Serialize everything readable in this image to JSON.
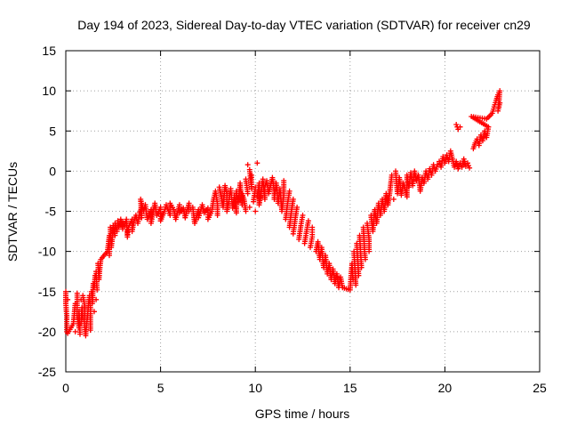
{
  "chart_data": {
    "type": "scatter",
    "title": "Day 194 of 2023, Sidereal Day-to-day VTEC variation (SDTVAR) for receiver cn29",
    "xlabel": "GPS time / hours",
    "ylabel": "SDTVAR / TECUs",
    "xlim": [
      0,
      25
    ],
    "ylim": [
      -25,
      15
    ],
    "xticks": [
      "0",
      "5",
      "10",
      "15",
      "20",
      "25"
    ],
    "yticks": [
      "-25",
      "-20",
      "-15",
      "-10",
      "-5",
      "0",
      "5",
      "10",
      "15"
    ],
    "grid": true,
    "marker": "+",
    "color": "#ff0000",
    "series": [
      {
        "name": "cn29",
        "points": [
          [
            0.0,
            -15.0
          ],
          [
            0.0,
            -16.5
          ],
          [
            0.05,
            -18.0
          ],
          [
            0.05,
            -20.0
          ],
          [
            0.1,
            -16.0
          ],
          [
            0.1,
            -20.2
          ],
          [
            0.4,
            -19.0
          ],
          [
            0.5,
            -16.5
          ],
          [
            0.5,
            -20.0
          ],
          [
            0.6,
            -15.2
          ],
          [
            0.6,
            -18.0
          ],
          [
            0.7,
            -19.5
          ],
          [
            0.7,
            -17.5
          ],
          [
            0.75,
            -20.3
          ],
          [
            0.8,
            -16.0
          ],
          [
            0.8,
            -19.0
          ],
          [
            0.85,
            -17.0
          ],
          [
            0.9,
            -18.5
          ],
          [
            0.9,
            -15.5
          ],
          [
            1.0,
            -16.8
          ],
          [
            1.0,
            -19.5
          ],
          [
            1.05,
            -20.5
          ],
          [
            1.1,
            -19.0
          ],
          [
            1.15,
            -18.0
          ],
          [
            1.2,
            -16.5
          ],
          [
            1.25,
            -15.5
          ],
          [
            1.3,
            -17.0
          ],
          [
            1.3,
            -19.8
          ],
          [
            1.35,
            -15.0
          ],
          [
            1.4,
            -16.5
          ],
          [
            1.45,
            -14.0
          ],
          [
            1.5,
            -17.5
          ],
          [
            1.5,
            -14.5
          ],
          [
            1.55,
            -13.0
          ],
          [
            1.6,
            -16.0
          ],
          [
            1.6,
            -12.5
          ],
          [
            1.65,
            -14.8
          ],
          [
            1.7,
            -11.5
          ],
          [
            1.75,
            -13.5
          ],
          [
            1.8,
            -12.0
          ],
          [
            1.85,
            -11.0
          ],
          [
            2.2,
            -10.0
          ],
          [
            2.25,
            -9.0
          ],
          [
            2.3,
            -8.0
          ],
          [
            2.3,
            -10.5
          ],
          [
            2.35,
            -7.0
          ],
          [
            2.4,
            -9.5
          ],
          [
            2.45,
            -8.5
          ],
          [
            2.5,
            -6.8
          ],
          [
            2.6,
            -8.0
          ],
          [
            2.6,
            -6.5
          ],
          [
            2.7,
            -7.5
          ],
          [
            2.75,
            -6.2
          ],
          [
            2.8,
            -7.0
          ],
          [
            2.9,
            -6.0
          ],
          [
            3.0,
            -7.2
          ],
          [
            3.0,
            -6.3
          ],
          [
            3.1,
            -6.8
          ],
          [
            3.2,
            -6.0
          ],
          [
            3.25,
            -8.2
          ],
          [
            3.3,
            -7.0
          ],
          [
            3.4,
            -6.5
          ],
          [
            3.5,
            -6.0
          ],
          [
            3.5,
            -7.5
          ],
          [
            3.6,
            -6.2
          ],
          [
            3.7,
            -5.5
          ],
          [
            3.8,
            -6.5
          ],
          [
            3.9,
            -5.2
          ],
          [
            4.0,
            -4.5
          ],
          [
            4.0,
            -5.8
          ],
          [
            3.95,
            -3.5
          ],
          [
            4.1,
            -5.0
          ],
          [
            4.2,
            -4.2
          ],
          [
            4.3,
            -6.0
          ],
          [
            4.5,
            -4.8
          ],
          [
            4.5,
            -6.5
          ],
          [
            4.6,
            -5.2
          ],
          [
            4.7,
            -4.0
          ],
          [
            4.8,
            -5.5
          ],
          [
            5.0,
            -4.5
          ],
          [
            5.0,
            -6.2
          ],
          [
            5.2,
            -5.0
          ],
          [
            5.3,
            -4.2
          ],
          [
            5.5,
            -5.5
          ],
          [
            5.5,
            -4.0
          ],
          [
            5.7,
            -4.8
          ],
          [
            5.8,
            -6.0
          ],
          [
            6.0,
            -4.2
          ],
          [
            6.0,
            -5.2
          ],
          [
            6.2,
            -4.6
          ],
          [
            6.3,
            -5.8
          ],
          [
            6.5,
            -4.0
          ],
          [
            6.5,
            -5.0
          ],
          [
            6.7,
            -4.5
          ],
          [
            6.8,
            -6.5
          ],
          [
            7.0,
            -4.8
          ],
          [
            7.0,
            -5.8
          ],
          [
            7.2,
            -4.2
          ],
          [
            7.3,
            -5.2
          ],
          [
            7.5,
            -4.6
          ],
          [
            7.5,
            -6.0
          ],
          [
            7.7,
            -5.0
          ],
          [
            7.8,
            -3.5
          ],
          [
            7.9,
            -2.5
          ],
          [
            8.0,
            -4.0
          ],
          [
            8.0,
            -5.5
          ],
          [
            8.1,
            -2.0
          ],
          [
            8.2,
            -3.2
          ],
          [
            8.3,
            -4.5
          ],
          [
            8.4,
            -1.8
          ],
          [
            8.5,
            -2.8
          ],
          [
            8.5,
            -5.0
          ],
          [
            8.6,
            -3.8
          ],
          [
            8.7,
            -2.2
          ],
          [
            8.8,
            -4.6
          ],
          [
            8.9,
            -3.0
          ],
          [
            9.0,
            -5.2
          ],
          [
            9.0,
            -2.5
          ],
          [
            9.1,
            -3.8
          ],
          [
            9.2,
            -1.5
          ],
          [
            9.3,
            -4.2
          ],
          [
            9.3,
            -2.8
          ],
          [
            9.4,
            -3.5
          ],
          [
            9.5,
            -5.0
          ],
          [
            9.5,
            -1.0
          ],
          [
            9.6,
            -2.8
          ],
          [
            9.6,
            0.8
          ],
          [
            9.7,
            -4.5
          ],
          [
            9.7,
            0.2
          ],
          [
            9.8,
            -2.2
          ],
          [
            9.8,
            -0.5
          ],
          [
            9.9,
            -3.8
          ],
          [
            10.0,
            -2.0
          ],
          [
            10.0,
            -5.0
          ],
          [
            10.1,
            1.0
          ],
          [
            10.1,
            -3.2
          ],
          [
            10.2,
            -1.5
          ],
          [
            10.2,
            -4.2
          ],
          [
            10.3,
            -2.8
          ],
          [
            10.4,
            -1.0
          ],
          [
            10.5,
            -3.5
          ],
          [
            10.5,
            -2.0
          ],
          [
            10.6,
            -1.2
          ],
          [
            10.7,
            -2.8
          ],
          [
            10.8,
            -1.8
          ],
          [
            10.9,
            -0.8
          ],
          [
            11.0,
            -2.5
          ],
          [
            11.0,
            -3.5
          ],
          [
            11.1,
            -1.5
          ],
          [
            11.2,
            -4.0
          ],
          [
            11.3,
            -2.2
          ],
          [
            11.4,
            -5.0
          ],
          [
            11.5,
            -3.0
          ],
          [
            11.5,
            -1.2
          ],
          [
            11.6,
            -6.0
          ],
          [
            11.7,
            -4.0
          ],
          [
            11.8,
            -2.5
          ],
          [
            11.8,
            -7.0
          ],
          [
            11.9,
            -5.0
          ],
          [
            12.0,
            -3.5
          ],
          [
            12.0,
            -7.8
          ],
          [
            12.1,
            -6.0
          ],
          [
            12.2,
            -4.5
          ],
          [
            12.3,
            -8.5
          ],
          [
            12.4,
            -6.8
          ],
          [
            12.5,
            -5.5
          ],
          [
            12.6,
            -9.0
          ],
          [
            12.7,
            -7.5
          ],
          [
            12.8,
            -6.2
          ],
          [
            12.9,
            -9.5
          ],
          [
            13.0,
            -8.2
          ],
          [
            13.0,
            -7.0
          ],
          [
            13.2,
            -10.0
          ],
          [
            13.3,
            -8.8
          ],
          [
            13.4,
            -11.0
          ],
          [
            13.5,
            -9.5
          ],
          [
            13.6,
            -12.0
          ],
          [
            13.7,
            -10.5
          ],
          [
            13.8,
            -12.8
          ],
          [
            13.9,
            -11.5
          ],
          [
            14.0,
            -13.5
          ],
          [
            14.1,
            -12.2
          ],
          [
            14.2,
            -14.0
          ],
          [
            14.3,
            -12.8
          ],
          [
            14.4,
            -14.5
          ],
          [
            14.5,
            -13.2
          ],
          [
            14.6,
            -14.5
          ],
          [
            15.0,
            -14.8
          ],
          [
            15.05,
            -13.0
          ],
          [
            15.1,
            -11.5
          ],
          [
            15.15,
            -13.5
          ],
          [
            15.2,
            -10.0
          ],
          [
            15.25,
            -12.0
          ],
          [
            15.3,
            -14.2
          ],
          [
            15.35,
            -9.0
          ],
          [
            15.4,
            -11.0
          ],
          [
            15.45,
            -13.0
          ],
          [
            15.5,
            -8.0
          ],
          [
            15.55,
            -10.0
          ],
          [
            15.6,
            -12.0
          ],
          [
            15.7,
            -7.0
          ],
          [
            15.75,
            -9.5
          ],
          [
            15.8,
            -11.0
          ],
          [
            15.9,
            -6.5
          ],
          [
            16.0,
            -8.5
          ],
          [
            16.0,
            -10.0
          ],
          [
            16.1,
            -5.5
          ],
          [
            16.2,
            -7.5
          ],
          [
            16.3,
            -4.8
          ],
          [
            16.4,
            -6.5
          ],
          [
            16.5,
            -4.0
          ],
          [
            16.6,
            -5.5
          ],
          [
            16.7,
            -3.5
          ],
          [
            16.8,
            -5.0
          ],
          [
            16.9,
            -2.8
          ],
          [
            17.0,
            -4.2
          ],
          [
            17.1,
            -2.5
          ],
          [
            17.2,
            -0.5
          ],
          [
            17.3,
            -3.5
          ],
          [
            17.4,
            0.0
          ],
          [
            17.5,
            -2.8
          ],
          [
            17.6,
            -0.8
          ],
          [
            17.7,
            -3.0
          ],
          [
            17.8,
            -1.5
          ],
          [
            17.9,
            -2.2
          ],
          [
            18.0,
            -3.2
          ],
          [
            18.0,
            -0.5
          ],
          [
            18.1,
            -2.0
          ],
          [
            18.2,
            -0.2
          ],
          [
            18.3,
            -1.8
          ],
          [
            18.4,
            0.0
          ],
          [
            18.5,
            -1.2
          ],
          [
            18.6,
            -0.5
          ],
          [
            18.7,
            -2.5
          ],
          [
            18.8,
            -0.8
          ],
          [
            18.9,
            -1.5
          ],
          [
            19.0,
            0.0
          ],
          [
            19.1,
            -1.0
          ],
          [
            19.2,
            0.3
          ],
          [
            19.3,
            -0.5
          ],
          [
            19.4,
            0.8
          ],
          [
            19.5,
            0.0
          ],
          [
            19.6,
            0.8
          ],
          [
            19.7,
            1.2
          ],
          [
            19.8,
            0.5
          ],
          [
            19.9,
            1.8
          ],
          [
            20.0,
            1.0
          ],
          [
            20.1,
            2.0
          ],
          [
            20.2,
            1.2
          ],
          [
            20.3,
            2.5
          ],
          [
            20.4,
            1.5
          ],
          [
            20.5,
            0.5
          ],
          [
            20.6,
            1.2
          ],
          [
            20.7,
            0.3
          ],
          [
            20.8,
            1.0
          ],
          [
            20.9,
            0.5
          ],
          [
            21.0,
            1.5
          ],
          [
            21.1,
            0.6
          ],
          [
            21.2,
            1.0
          ],
          [
            21.3,
            0.4
          ],
          [
            20.6,
            5.8
          ],
          [
            20.7,
            5.2
          ],
          [
            20.8,
            5.5
          ],
          [
            21.5,
            2.8
          ],
          [
            21.6,
            3.5
          ],
          [
            21.7,
            4.0
          ],
          [
            21.8,
            3.2
          ],
          [
            21.9,
            4.5
          ],
          [
            22.0,
            3.8
          ],
          [
            22.1,
            5.0
          ],
          [
            22.2,
            4.2
          ],
          [
            22.3,
            5.5
          ],
          [
            21.4,
            6.8
          ],
          [
            22.2,
            6.5
          ],
          [
            22.5,
            7.2
          ],
          [
            22.6,
            8.0
          ],
          [
            22.7,
            8.8
          ],
          [
            22.8,
            9.5
          ],
          [
            22.9,
            10.0
          ],
          [
            22.8,
            7.5
          ],
          [
            22.9,
            8.5
          ]
        ]
      }
    ]
  }
}
